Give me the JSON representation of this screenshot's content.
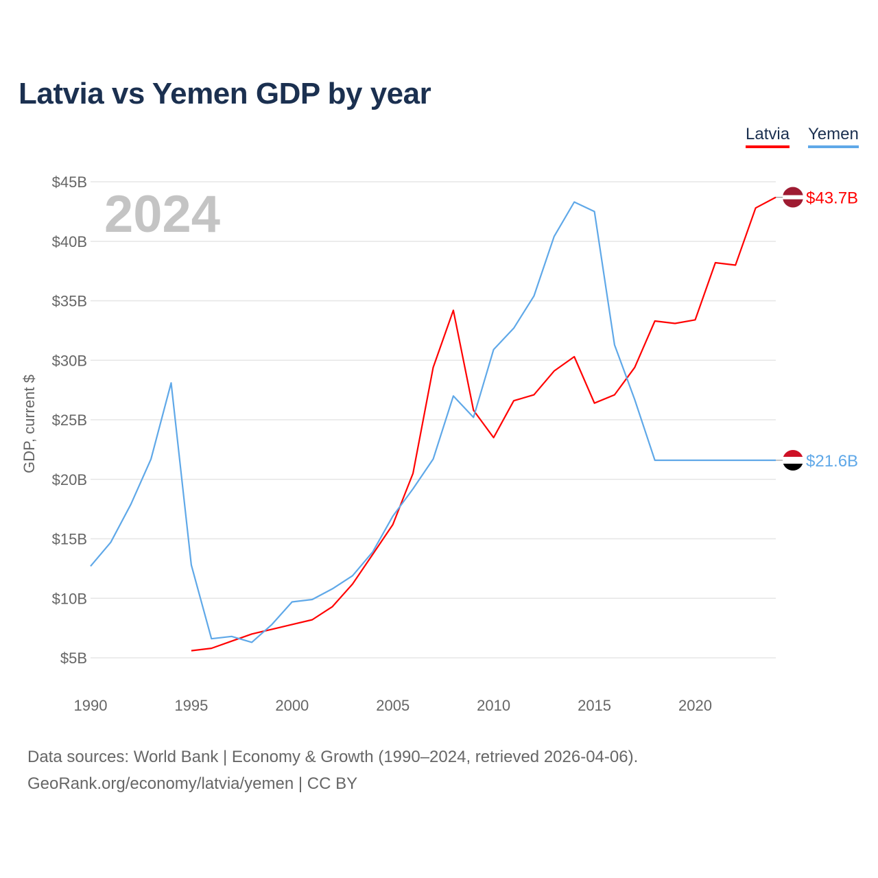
{
  "title": "Latvia vs Yemen GDP by year",
  "footer": {
    "line1": "Data sources: World Bank | Economy & Growth (1990–2024, retrieved 2026-04-06).",
    "line2": "GeoRank.org/economy/latvia/yemen | CC BY"
  },
  "chart_data": {
    "type": "line",
    "title": "Latvia vs Yemen GDP by year",
    "xlabel": "",
    "ylabel": "GDP, current $",
    "year_watermark": "2024",
    "xlim": [
      1990,
      2024
    ],
    "ylim": [
      5,
      45
    ],
    "x_ticks": [
      "1990",
      "1995",
      "2000",
      "2005",
      "2010",
      "2015",
      "2020"
    ],
    "y_ticks": [
      "$5B",
      "$10B",
      "$15B",
      "$20B",
      "$25B",
      "$30B",
      "$35B",
      "$40B",
      "$45B"
    ],
    "grid": true,
    "legend": "top-right",
    "series": [
      {
        "name": "Latvia",
        "color": "#ff0000",
        "end_label": "$43.7B",
        "flag": "latvia-flag",
        "x": [
          1995,
          1996,
          1997,
          1998,
          1999,
          2000,
          2001,
          2002,
          2003,
          2004,
          2005,
          2006,
          2007,
          2008,
          2009,
          2010,
          2011,
          2012,
          2013,
          2014,
          2015,
          2016,
          2017,
          2018,
          2019,
          2020,
          2021,
          2022,
          2023,
          2024
        ],
        "values": [
          5.6,
          5.8,
          6.4,
          7.0,
          7.4,
          7.8,
          8.2,
          9.3,
          11.2,
          13.7,
          16.2,
          20.5,
          29.4,
          34.2,
          25.8,
          23.5,
          26.6,
          27.1,
          29.1,
          30.3,
          26.4,
          27.1,
          29.4,
          33.3,
          33.1,
          33.4,
          38.2,
          38.0,
          42.8,
          43.7
        ]
      },
      {
        "name": "Yemen",
        "color": "#5fa8e8",
        "end_label": "$21.6B",
        "flag": "yemen-flag",
        "x": [
          1990,
          1991,
          1992,
          1993,
          1994,
          1995,
          1996,
          1997,
          1998,
          1999,
          2000,
          2001,
          2002,
          2003,
          2004,
          2005,
          2006,
          2007,
          2008,
          2009,
          2010,
          2011,
          2012,
          2013,
          2014,
          2015,
          2016,
          2017,
          2018,
          2019,
          2020,
          2021,
          2022,
          2023,
          2024
        ],
        "values": [
          12.7,
          14.7,
          17.9,
          21.7,
          28.1,
          12.8,
          6.6,
          6.8,
          6.3,
          7.8,
          9.7,
          9.9,
          10.8,
          11.9,
          13.9,
          16.9,
          19.2,
          21.7,
          27.0,
          25.2,
          30.9,
          32.7,
          35.4,
          40.4,
          43.3,
          42.5,
          31.3,
          26.7,
          21.6,
          21.6,
          21.6,
          21.6,
          21.6,
          21.6,
          21.6
        ]
      }
    ]
  }
}
